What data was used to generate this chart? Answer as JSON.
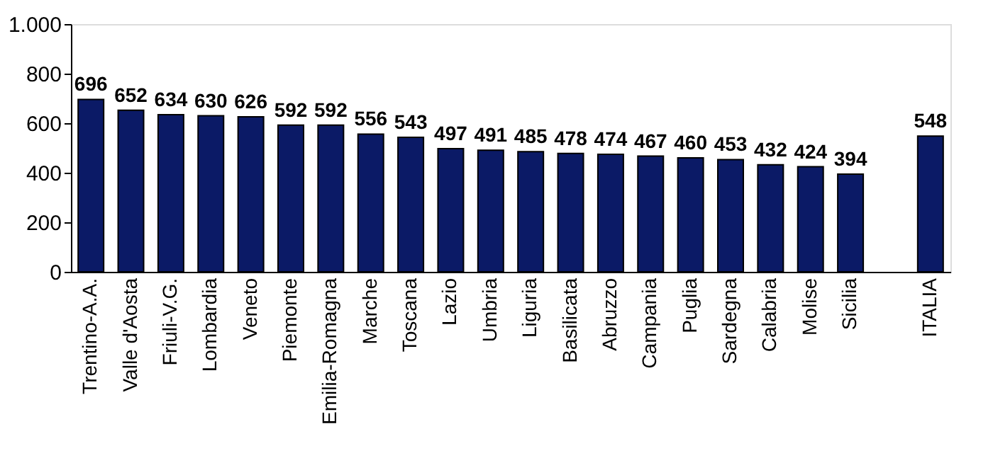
{
  "chart_data": {
    "type": "bar",
    "categories": [
      "Trentino-A.A.",
      "Valle d'Aosta",
      "Friuli-V.G.",
      "Lombardia",
      "Veneto",
      "Piemonte",
      "Emilia-Romagna",
      "Marche",
      "Toscana",
      "Lazio",
      "Umbria",
      "Liguria",
      "Basilicata",
      "Abruzzo",
      "Campania",
      "Puglia",
      "Sardegna",
      "Calabria",
      "Molise",
      "Sicilia",
      null,
      "ITALIA"
    ],
    "values": [
      696,
      652,
      634,
      630,
      626,
      592,
      592,
      556,
      543,
      497,
      491,
      485,
      478,
      474,
      467,
      460,
      453,
      432,
      424,
      394,
      null,
      548
    ],
    "color": "#0b1a66",
    "ylim": [
      0,
      1000
    ],
    "yticks": [
      0,
      200,
      400,
      600,
      800,
      {
        "value": 1000,
        "label": "1.000"
      }
    ],
    "data_labels": true,
    "grid": false
  }
}
